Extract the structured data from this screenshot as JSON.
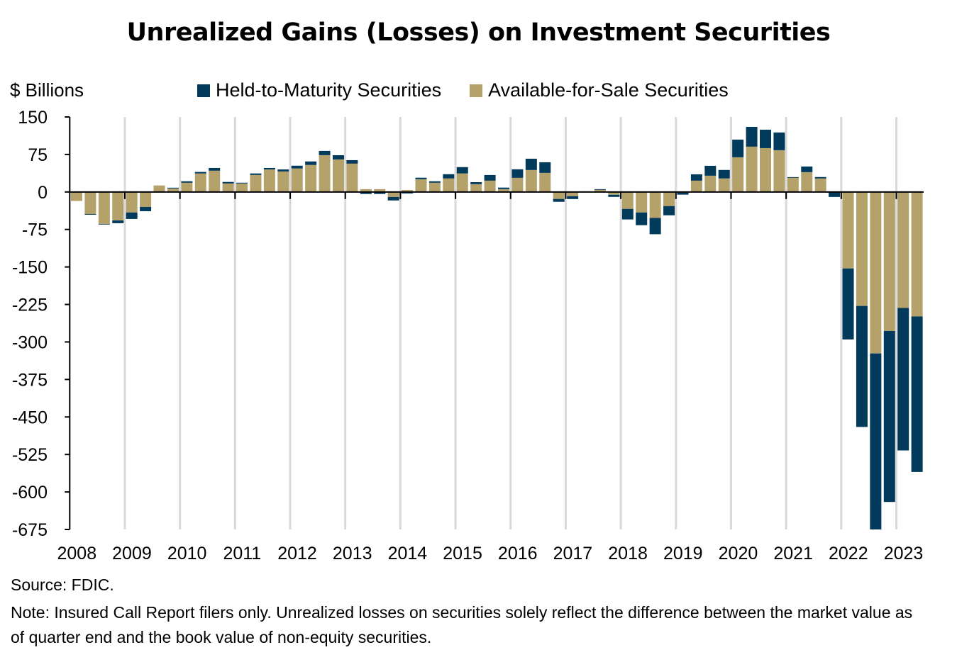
{
  "chart_data": {
    "type": "bar",
    "stacked": true,
    "title": "Unrealized Gains (Losses) on Investment Securities",
    "ylabel": "$ Billions",
    "xlabel": "",
    "ylim": [
      -675,
      150
    ],
    "yticks": [
      150,
      75,
      0,
      -75,
      -150,
      -225,
      -300,
      -375,
      -450,
      -525,
      -600,
      -675
    ],
    "xtick_labels": [
      "2008",
      "2009",
      "2010",
      "2011",
      "2012",
      "2013",
      "2014",
      "2015",
      "2016",
      "2017",
      "2018",
      "2019",
      "2020",
      "2021",
      "2022",
      "2023"
    ],
    "grid": "vertical at year boundaries",
    "legend_position": "top",
    "categories": [
      "2008Q1",
      "2008Q2",
      "2008Q3",
      "2008Q4",
      "2009Q1",
      "2009Q2",
      "2009Q3",
      "2009Q4",
      "2010Q1",
      "2010Q2",
      "2010Q3",
      "2010Q4",
      "2011Q1",
      "2011Q2",
      "2011Q3",
      "2011Q4",
      "2012Q1",
      "2012Q2",
      "2012Q3",
      "2012Q4",
      "2013Q1",
      "2013Q2",
      "2013Q3",
      "2013Q4",
      "2014Q1",
      "2014Q2",
      "2014Q3",
      "2014Q4",
      "2015Q1",
      "2015Q2",
      "2015Q3",
      "2015Q4",
      "2016Q1",
      "2016Q2",
      "2016Q3",
      "2016Q4",
      "2017Q1",
      "2017Q2",
      "2017Q3",
      "2017Q4",
      "2018Q1",
      "2018Q2",
      "2018Q3",
      "2018Q4",
      "2019Q1",
      "2019Q2",
      "2019Q3",
      "2019Q4",
      "2020Q1",
      "2020Q2",
      "2020Q3",
      "2020Q4",
      "2021Q1",
      "2021Q2",
      "2021Q3",
      "2021Q4",
      "2022Q1",
      "2022Q2",
      "2022Q3",
      "2022Q4",
      "2023Q1",
      "2023Q2"
    ],
    "series": [
      {
        "name": "Held-to-Maturity Securities",
        "color": "#023a5c",
        "values": [
          1,
          -1.5,
          -1,
          -5.5,
          -13,
          -8.5,
          0,
          1.5,
          3,
          3,
          5.5,
          3,
          1.5,
          3,
          3,
          4,
          5.5,
          7,
          8.5,
          8.5,
          7,
          -4,
          -4,
          -7,
          -3,
          3,
          3,
          8.5,
          12.7,
          4,
          11.3,
          3,
          17,
          22.6,
          21.2,
          -5.7,
          -5.7,
          0,
          1.4,
          -4.2,
          -21,
          -25.5,
          -32.5,
          -18.4,
          -4,
          12.7,
          19.8,
          17,
          35.4,
          39.6,
          36.8,
          35.4,
          1.4,
          11.3,
          2.8,
          -10,
          -142,
          -242,
          -367,
          -342,
          -285,
          -311
        ]
      },
      {
        "name": "Available-for-Sale Securities",
        "color": "#b4a26a",
        "values": [
          -18,
          -44,
          -64,
          -57,
          -41,
          -30,
          13,
          7,
          18.4,
          37,
          42.5,
          17,
          17,
          34,
          45,
          41,
          47,
          54,
          73.6,
          65,
          56.6,
          5.7,
          5.7,
          -10,
          4,
          25.5,
          18.4,
          27,
          37,
          15.6,
          22.6,
          5.7,
          28.3,
          43.9,
          38.2,
          -14,
          -8.5,
          1.4,
          4.2,
          -5.7,
          -34,
          -41,
          -52,
          -28.3,
          -1.4,
          22.6,
          32.5,
          27,
          69.3,
          90.6,
          87.7,
          83.5,
          28.3,
          39.6,
          27,
          1.4,
          -153,
          -228,
          -323,
          -278,
          -232,
          -249
        ]
      }
    ]
  },
  "footer": {
    "source": "Source: FDIC.",
    "note": "Note: Insured Call Report filers only. Unrealized losses on securities solely reflect the difference between the market value as of quarter end and the book value of non-equity securities."
  }
}
